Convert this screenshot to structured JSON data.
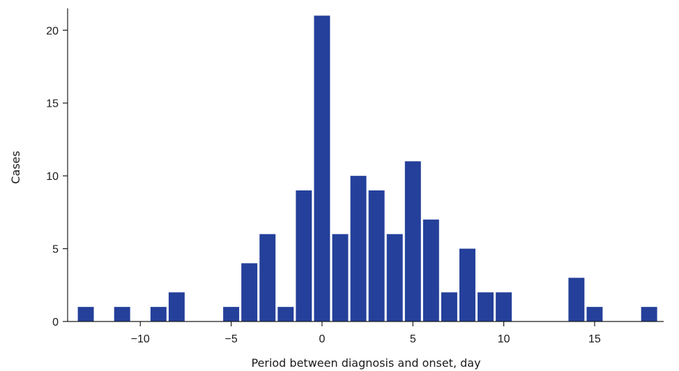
{
  "chart_data": {
    "type": "bar",
    "title": "",
    "xlabel": "Period between diagnosis and onset, day",
    "ylabel": "Cases",
    "x": [
      -13,
      -11,
      -9,
      -8,
      -5,
      -4,
      -3,
      -2,
      -1,
      0,
      1,
      2,
      3,
      4,
      5,
      6,
      7,
      8,
      9,
      10,
      14,
      15,
      18
    ],
    "values": [
      1,
      1,
      1,
      2,
      1,
      4,
      6,
      1,
      9,
      21,
      6,
      10,
      9,
      6,
      11,
      7,
      2,
      5,
      2,
      2,
      3,
      1,
      1
    ],
    "xlim": [
      -14,
      18.8
    ],
    "ylim": [
      0,
      21.5
    ],
    "xticks": [
      -10,
      -5,
      0,
      5,
      10,
      15
    ],
    "xtick_labels": [
      "−10",
      "−5",
      "0",
      "5",
      "10",
      "15"
    ],
    "yticks": [
      0,
      5,
      10,
      15,
      20
    ],
    "ytick_labels": [
      "0",
      "5",
      "10",
      "15",
      "20"
    ],
    "bar_color": "#24409a",
    "grid": false,
    "legend": "none"
  }
}
